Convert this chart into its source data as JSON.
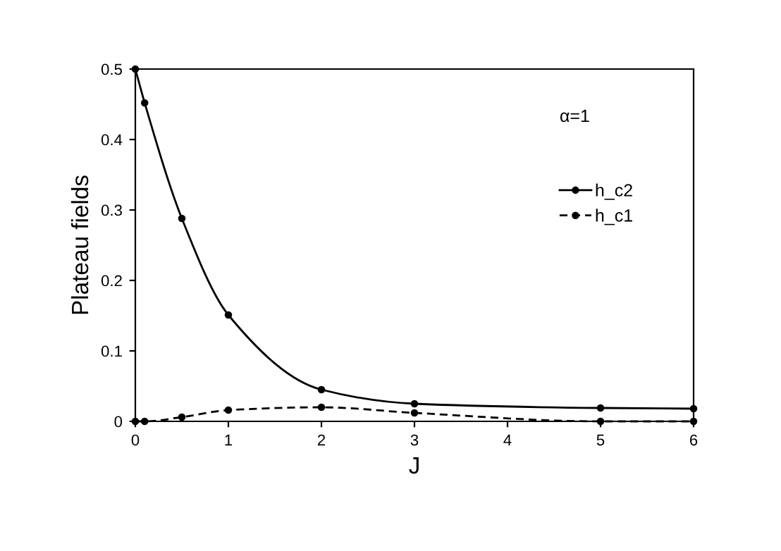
{
  "chart_data": {
    "type": "line",
    "xlabel": "J",
    "ylabel": "Plateau fields",
    "annotations": [
      "α=1"
    ],
    "series": [
      {
        "name": "h_c2",
        "color": "#000000",
        "line_style": "solid",
        "x": [
          0,
          0.1,
          0.5,
          1,
          2,
          3,
          5,
          6
        ],
        "values": [
          0.5,
          0.452,
          0.288,
          0.151,
          0.045,
          0.025,
          0.019,
          0.018
        ]
      },
      {
        "name": "h_c1",
        "color": "#000000",
        "line_style": "dashed",
        "x": [
          0,
          0.1,
          0.5,
          1,
          2,
          3,
          5,
          6
        ],
        "values": [
          0,
          0,
          0.006,
          0.016,
          0.02,
          0.012,
          0,
          0
        ]
      }
    ],
    "marker": "circle",
    "xlim": [
      0,
      6
    ],
    "xticks": [
      0,
      1,
      2,
      3,
      4,
      5,
      6
    ],
    "ylim": [
      0,
      0.5
    ],
    "yticks": [
      0,
      0.1,
      0.2,
      0.3,
      0.4,
      0.5
    ],
    "grid": false,
    "legend": "top right"
  }
}
